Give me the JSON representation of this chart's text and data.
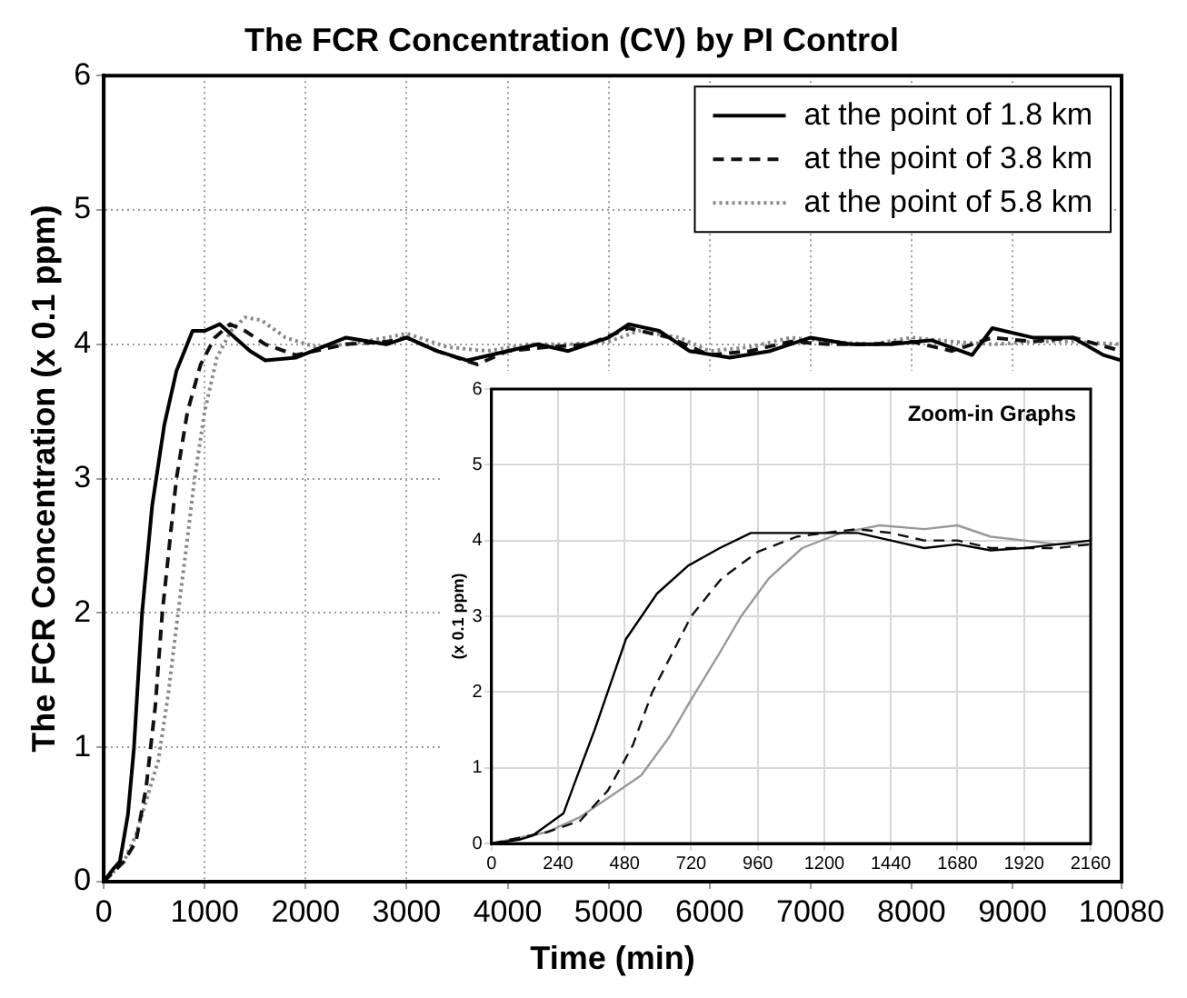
{
  "chart_data": [
    {
      "type": "line",
      "title": "The FCR Concentration (CV) by PI Control",
      "xlabel": "Time (min)",
      "ylabel": "The FCR Concentration (x 0.1 ppm)",
      "xlim": [
        0,
        10080
      ],
      "xticks": [
        0,
        1000,
        2000,
        3000,
        4000,
        5000,
        6000,
        7000,
        8000,
        9000,
        10080
      ],
      "ylim": [
        0,
        6
      ],
      "yticks": [
        0,
        1,
        2,
        3,
        4,
        5,
        6
      ],
      "grid": true,
      "legend": "top right",
      "series": [
        {
          "name": "at the point of 1.8 km",
          "color": "#000000",
          "line_style": "solid",
          "x": [
            0,
            100,
            160,
            240,
            300,
            380,
            480,
            600,
            720,
            880,
            1000,
            1150,
            1300,
            1450,
            1600,
            1900,
            2400,
            2800,
            3000,
            3300,
            3600,
            4000,
            4300,
            4600,
            5000,
            5200,
            5500,
            5800,
            6200,
            6600,
            7000,
            7400,
            7800,
            8200,
            8600,
            8800,
            9200,
            9600,
            9900,
            10080
          ],
          "values": [
            0,
            0.1,
            0.15,
            0.5,
            1.0,
            2.0,
            2.8,
            3.4,
            3.8,
            4.1,
            4.1,
            4.15,
            4.05,
            3.95,
            3.88,
            3.9,
            4.05,
            4.0,
            4.05,
            3.95,
            3.88,
            3.95,
            4.0,
            3.95,
            4.05,
            4.15,
            4.1,
            3.95,
            3.9,
            3.95,
            4.05,
            4.0,
            4.0,
            4.03,
            3.92,
            4.12,
            4.05,
            4.05,
            3.92,
            3.88
          ]
        },
        {
          "name": "at the point of 3.8 km",
          "color": "#111111",
          "line_style": "dashed",
          "x": [
            0,
            200,
            320,
            420,
            510,
            580,
            720,
            830,
            960,
            1100,
            1250,
            1400,
            1600,
            1900,
            2400,
            2800,
            3000,
            3300,
            3700,
            4000,
            4400,
            4800,
            5200,
            5600,
            6000,
            6400,
            6800,
            7200,
            7600,
            8000,
            8400,
            8800,
            9200,
            9600,
            10080
          ],
          "values": [
            0,
            0.15,
            0.3,
            0.7,
            1.3,
            2.0,
            3.0,
            3.5,
            3.85,
            4.05,
            4.15,
            4.1,
            4.0,
            3.92,
            4.0,
            4.02,
            4.05,
            3.95,
            3.85,
            3.95,
            3.98,
            4.0,
            4.12,
            4.05,
            3.92,
            3.95,
            4.02,
            4.0,
            4.0,
            4.02,
            3.95,
            4.05,
            4.02,
            4.05,
            3.95
          ]
        },
        {
          "name": "at the point of 5.8 km",
          "color": "#888888",
          "line_style": "dotted",
          "x": [
            0,
            200,
            320,
            420,
            540,
            640,
            720,
            820,
            900,
            1000,
            1120,
            1260,
            1400,
            1560,
            1800,
            2100,
            2400,
            2800,
            3000,
            3400,
            3800,
            4200,
            4600,
            5000,
            5300,
            5700,
            6000,
            6400,
            6800,
            7200,
            7600,
            8000,
            8400,
            8800,
            9200,
            9600,
            10080
          ],
          "values": [
            0,
            0.15,
            0.35,
            0.6,
            0.9,
            1.4,
            1.9,
            2.5,
            3.0,
            3.5,
            3.9,
            4.1,
            4.2,
            4.18,
            4.05,
            3.98,
            4.0,
            4.05,
            4.08,
            3.98,
            3.95,
            4.0,
            4.0,
            4.02,
            4.1,
            4.05,
            3.95,
            3.98,
            4.05,
            4.02,
            4.0,
            4.05,
            4.02,
            4.0,
            4.02,
            4.02,
            4.0
          ]
        }
      ]
    },
    {
      "type": "line",
      "title": "Zoom-in Graphs",
      "ylabel": "(x 0.1 ppm)",
      "xlim": [
        0,
        2160
      ],
      "xticks": [
        0,
        240,
        480,
        720,
        960,
        1200,
        1440,
        1680,
        1920,
        2160
      ],
      "ylim": [
        0,
        6
      ],
      "yticks": [
        0,
        1,
        2,
        3,
        4,
        5,
        6
      ],
      "grid": true,
      "series": [
        {
          "color": "#000000",
          "line_style": "solid",
          "x": [
            0,
            100,
            146,
            260,
            300,
            372,
            485,
            597,
            710,
            823,
            935,
            1000,
            1200,
            1320,
            1440,
            1560,
            1680,
            1800,
            1920,
            2040,
            2160
          ],
          "values": [
            0,
            0.05,
            0.1,
            0.4,
            0.8,
            1.5,
            2.7,
            3.3,
            3.67,
            3.9,
            4.1,
            4.1,
            4.1,
            4.1,
            4.0,
            3.9,
            3.95,
            3.87,
            3.9,
            3.95,
            4.0
          ]
        },
        {
          "color": "#111111",
          "line_style": "dashed",
          "x": [
            0,
            200,
            320,
            420,
            510,
            580,
            720,
            830,
            960,
            1100,
            1200,
            1320,
            1440,
            1560,
            1680,
            1800,
            2040,
            2160
          ],
          "values": [
            0,
            0.15,
            0.3,
            0.7,
            1.3,
            2.0,
            3.0,
            3.5,
            3.85,
            4.05,
            4.1,
            4.15,
            4.1,
            4.0,
            4.0,
            3.9,
            3.9,
            3.95
          ]
        },
        {
          "color": "#999999",
          "line_style": "solid",
          "x": [
            0,
            200,
            320,
            420,
            540,
            640,
            720,
            820,
            900,
            1000,
            1120,
            1260,
            1400,
            1560,
            1680,
            1800,
            1920,
            2040,
            2160
          ],
          "values": [
            0,
            0.15,
            0.35,
            0.6,
            0.9,
            1.4,
            1.9,
            2.5,
            3.0,
            3.5,
            3.9,
            4.1,
            4.2,
            4.15,
            4.2,
            4.05,
            4.0,
            3.95,
            3.95
          ]
        }
      ]
    }
  ]
}
